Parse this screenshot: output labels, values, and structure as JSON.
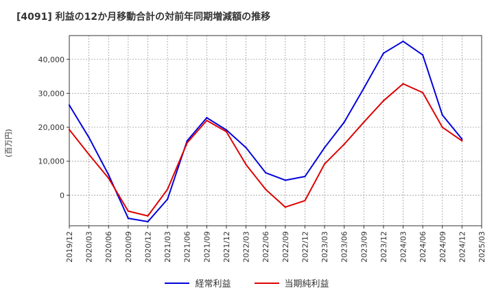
{
  "chart_data": {
    "type": "line",
    "title": "[4091]  利益の12か月移動合計の対前年同期増減額の推移",
    "ylabel": "(百万円)",
    "xlabel": "",
    "ylim": [
      -9000,
      47000
    ],
    "yticks": [
      0,
      10000,
      20000,
      30000,
      40000
    ],
    "ytick_labels": [
      "0",
      "10,000",
      "20,000",
      "30,000",
      "40,000"
    ],
    "categories": [
      "2019/12",
      "2020/03",
      "2020/06",
      "2020/09",
      "2020/12",
      "2021/03",
      "2021/06",
      "2021/09",
      "2021/12",
      "2022/03",
      "2022/06",
      "2022/09",
      "2022/12",
      "2023/03",
      "2023/06",
      "2023/09",
      "2023/12",
      "2024/03",
      "2024/06",
      "2024/09",
      "2024/12",
      "2025/03"
    ],
    "series": [
      {
        "name": "経常利益",
        "color": "#0000dd",
        "values": [
          26500,
          17000,
          6000,
          -6800,
          -7800,
          -1200,
          16000,
          22800,
          19200,
          14000,
          6600,
          4400,
          5500,
          14000,
          21500,
          31500,
          41800,
          45300,
          41300,
          23600,
          16500,
          null
        ]
      },
      {
        "name": "当期純利益",
        "color": "#dd0000",
        "values": [
          19300,
          12000,
          5000,
          -4700,
          -6100,
          1700,
          15400,
          22000,
          18700,
          9000,
          1700,
          -3500,
          -1600,
          9200,
          15000,
          21500,
          27800,
          32800,
          30200,
          20000,
          16000,
          null
        ]
      }
    ],
    "grid": true,
    "legend": "bottom"
  }
}
